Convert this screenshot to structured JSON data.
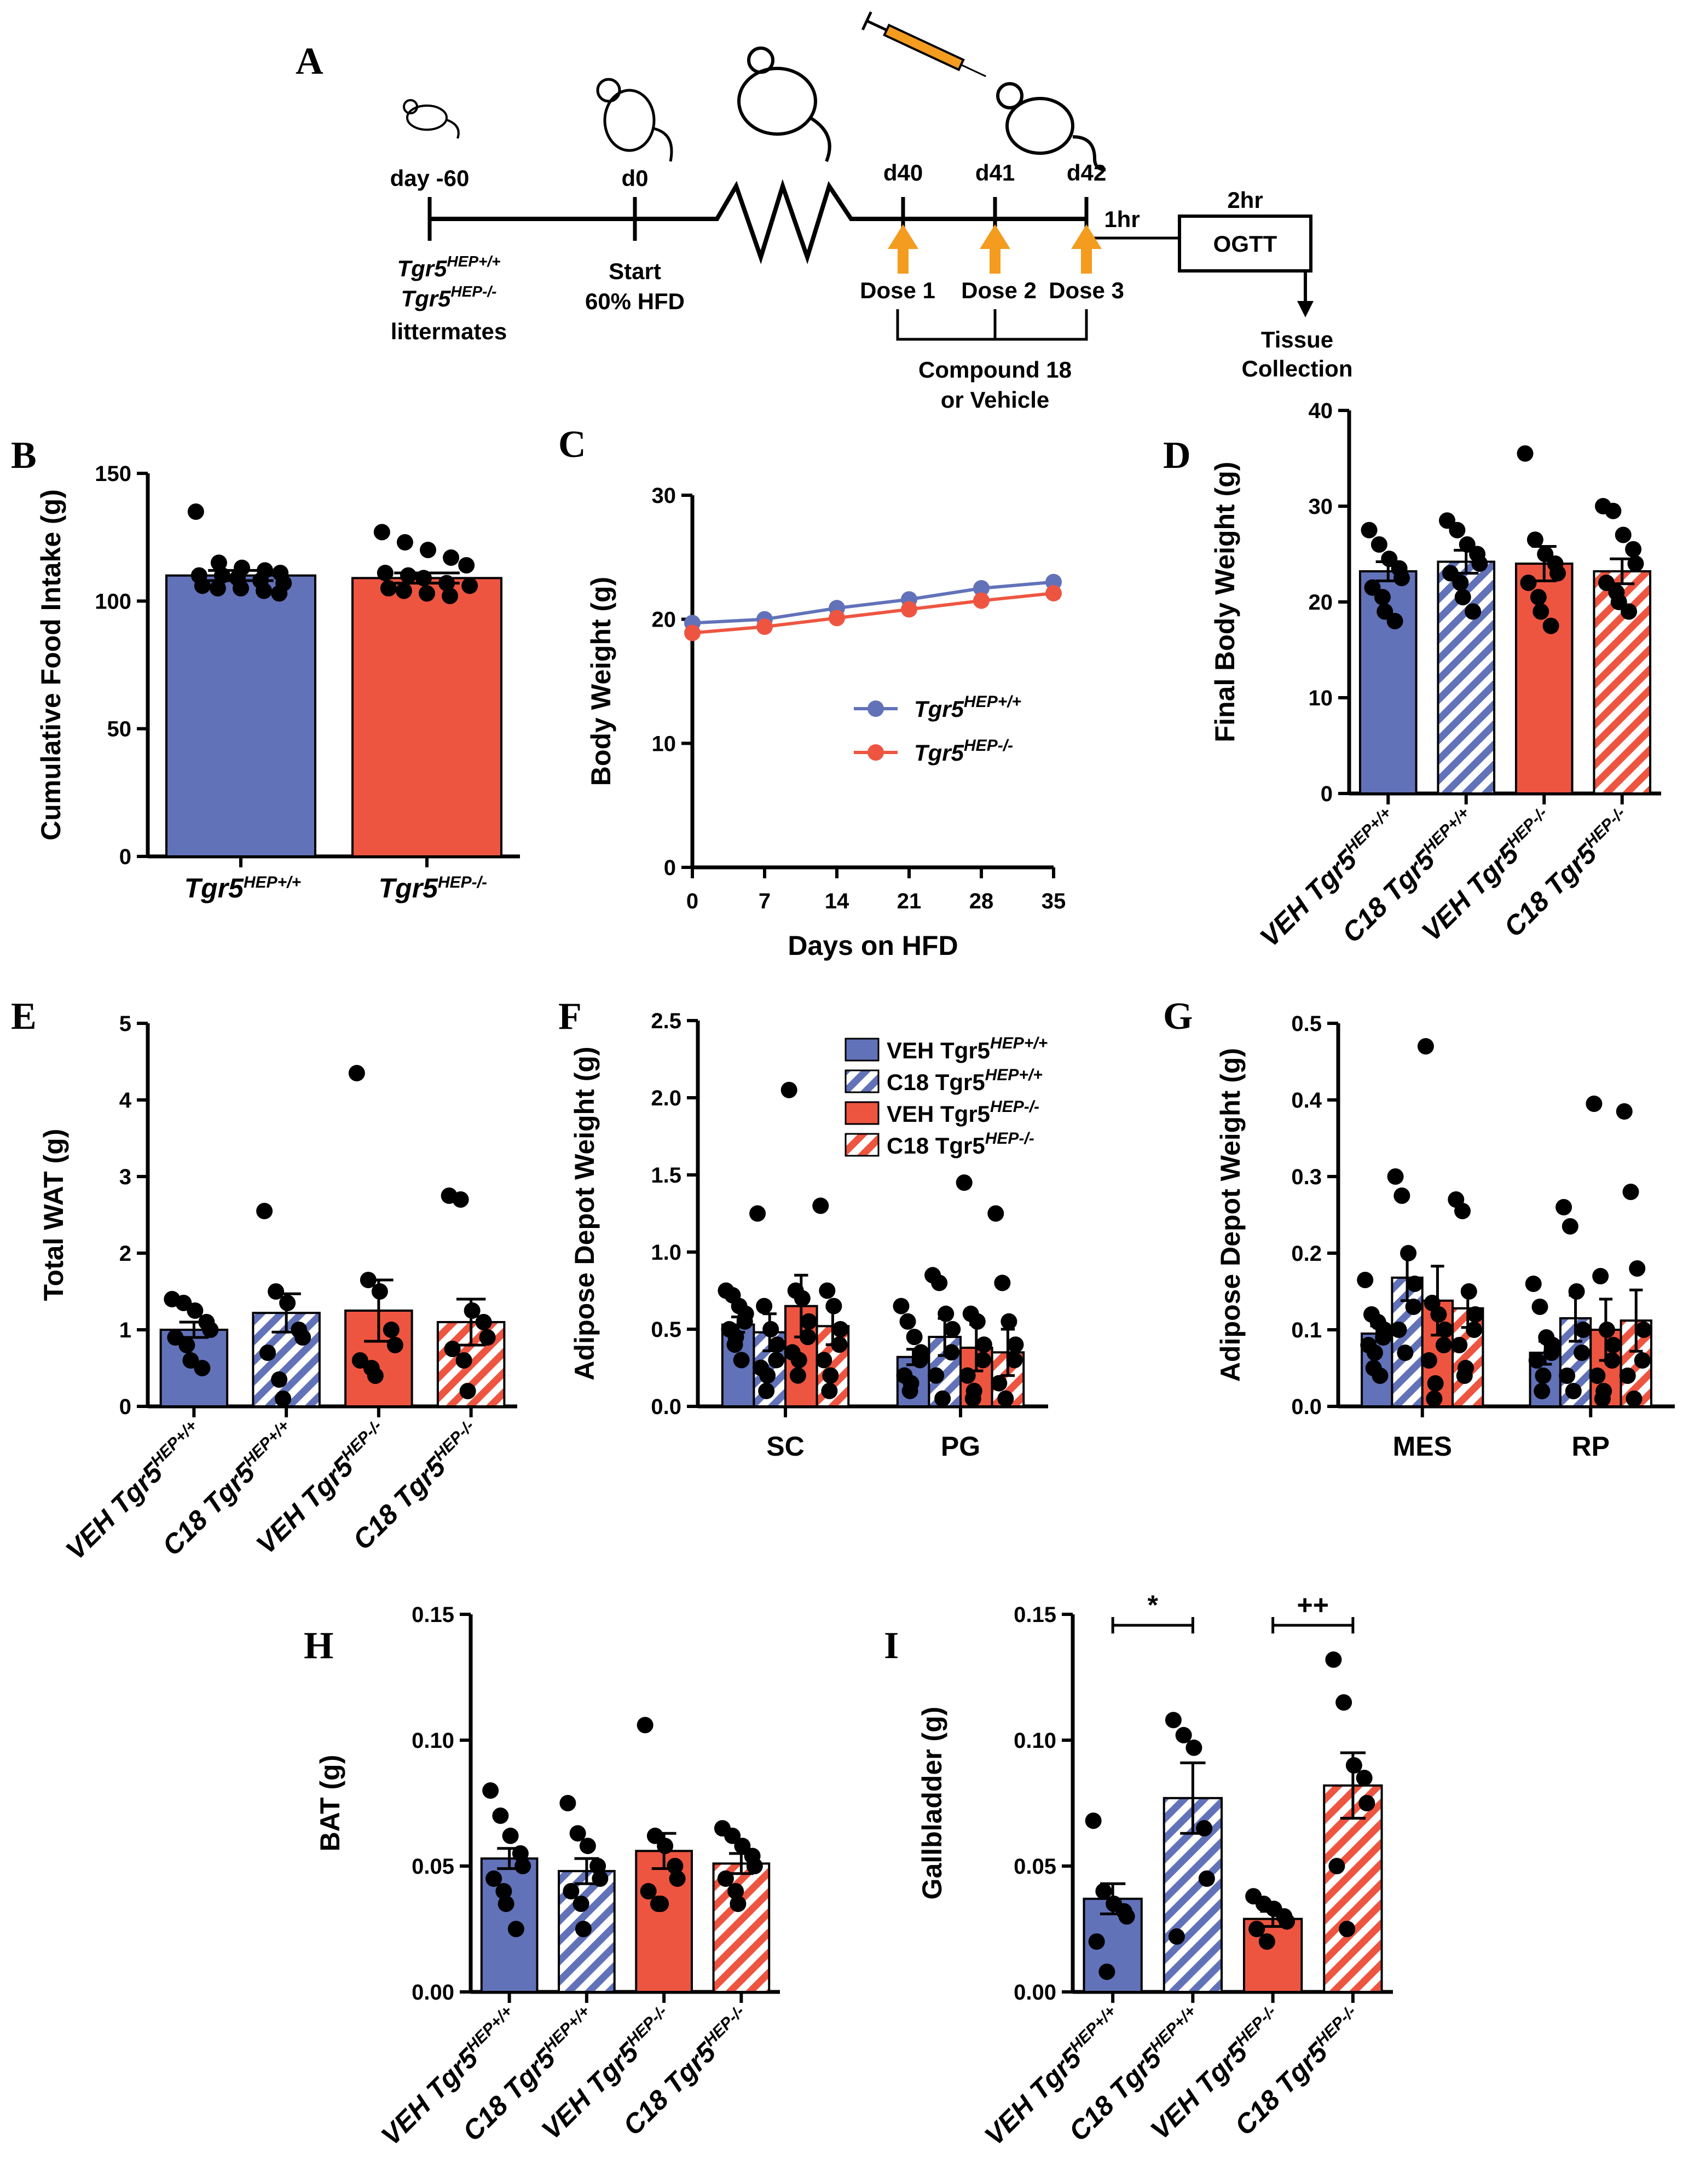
{
  "colors": {
    "blue": "#6272b9",
    "red": "#ee5541",
    "orange": "#f39c1f",
    "black": "#000000"
  },
  "schematic": {
    "letter": "A",
    "day_minus60": "day -60",
    "d0": "d0",
    "d40": "d40",
    "d41": "d41",
    "d42": "d42",
    "two_hr": "2hr",
    "one_hr": "1hr",
    "ogtt": "OGTT",
    "genotype1_base": "Tgr5",
    "genotype1_sup": "HEP+/+",
    "genotype2_base": "Tgr5",
    "genotype2_sup": "HEP-/-",
    "littermates": "littermates",
    "start": "Start",
    "hfd": "60% HFD",
    "dose1": "Dose 1",
    "dose2": "Dose 2",
    "dose3": "Dose 3",
    "compound_line1": "Compound 18",
    "compound_line2": "or Vehicle",
    "tissue_line1": "Tissue",
    "tissue_line2": "Collection",
    "mouse_icons": [
      "mouse-icon",
      "mouse-icon",
      "mouse-icon",
      "mouse-icon"
    ],
    "syringe_icon": "syringe-icon"
  },
  "chart_data": [
    {
      "id": "B",
      "letter": "B",
      "type": "bar",
      "ylabel": "Cumulative Food Intake (g)",
      "ylim": [
        0,
        150
      ],
      "yticks": [
        0,
        50,
        100,
        150
      ],
      "categories": [
        {
          "base": "Tgr5",
          "sup": "HEP+/+"
        },
        {
          "base": "Tgr5",
          "sup": "HEP-/-"
        }
      ],
      "bars": [
        {
          "value": 110,
          "sem": 2,
          "color": "blue",
          "hatch": false,
          "points": [
            135,
            115,
            113,
            112,
            111,
            110,
            110,
            109,
            108,
            107,
            106,
            105,
            105,
            104,
            103
          ]
        },
        {
          "value": 109,
          "sem": 2,
          "color": "red",
          "hatch": false,
          "points": [
            127,
            123,
            120,
            117,
            114,
            111,
            110,
            109,
            107,
            106,
            105,
            104,
            103,
            102
          ]
        }
      ]
    },
    {
      "id": "C",
      "letter": "C",
      "type": "line",
      "ylabel": "Body Weight (g)",
      "xlabel": "Days on HFD",
      "ylim": [
        0,
        30
      ],
      "yticks": [
        0,
        10,
        20,
        30
      ],
      "xlim": [
        0,
        35
      ],
      "xticks": [
        0,
        7,
        14,
        21,
        28,
        35
      ],
      "series": [
        {
          "base": "Tgr5",
          "sup": "HEP+/+",
          "color": "blue",
          "x": [
            0,
            7,
            14,
            21,
            28,
            35
          ],
          "y": [
            19.7,
            20.0,
            20.9,
            21.6,
            22.5,
            23.0
          ],
          "sem": [
            0.5,
            0.5,
            0.5,
            0.5,
            0.5,
            0.5
          ]
        },
        {
          "base": "Tgr5",
          "sup": "HEP-/-",
          "color": "red",
          "x": [
            0,
            7,
            14,
            21,
            28,
            35
          ],
          "y": [
            18.9,
            19.4,
            20.1,
            20.8,
            21.5,
            22.1
          ],
          "sem": [
            0.6,
            0.6,
            0.6,
            0.6,
            0.6,
            0.6
          ]
        }
      ]
    },
    {
      "id": "D",
      "letter": "D",
      "type": "bar",
      "ylabel": "Final Body Weight (g)",
      "ylim": [
        0,
        40
      ],
      "yticks": [
        0,
        10,
        20,
        30,
        40
      ],
      "categories": [
        {
          "base": "VEH Tgr5",
          "sup": "HEP+/+"
        },
        {
          "base": "C18 Tgr5",
          "sup": "HEP+/+"
        },
        {
          "base": "VEH Tgr5",
          "sup": "HEP-/-"
        },
        {
          "base": "C18 Tgr5",
          "sup": "HEP-/-"
        }
      ],
      "bars": [
        {
          "value": 23.2,
          "sem": 1.0,
          "color": "blue",
          "hatch": false,
          "points": [
            27.5,
            26.0,
            24.5,
            23.5,
            22.5,
            21.5,
            20.5,
            19.0,
            18.0
          ]
        },
        {
          "value": 24.2,
          "sem": 1.2,
          "color": "blue",
          "hatch": true,
          "points": [
            28.5,
            27.5,
            26.0,
            25.0,
            24.0,
            23.0,
            22.0,
            20.5,
            19.0
          ]
        },
        {
          "value": 24.0,
          "sem": 1.8,
          "color": "red",
          "hatch": false,
          "points": [
            35.5,
            26.5,
            25.0,
            24.0,
            23.0,
            22.0,
            20.5,
            19.0,
            17.5
          ]
        },
        {
          "value": 23.2,
          "sem": 1.3,
          "color": "red",
          "hatch": true,
          "points": [
            30.0,
            29.5,
            27.0,
            25.5,
            24.0,
            22.0,
            21.0,
            20.0,
            19.0
          ]
        }
      ]
    },
    {
      "id": "E",
      "letter": "E",
      "type": "bar",
      "ylabel": "Total WAT (g)",
      "ylim": [
        0,
        5
      ],
      "yticks": [
        0,
        1,
        2,
        3,
        4,
        5
      ],
      "categories": [
        {
          "base": "VEH Tgr5",
          "sup": "HEP+/+"
        },
        {
          "base": "C18 Tgr5",
          "sup": "HEP+/+"
        },
        {
          "base": "VEH Tgr5",
          "sup": "HEP-/-"
        },
        {
          "base": "C18 Tgr5",
          "sup": "HEP-/-"
        }
      ],
      "bars": [
        {
          "value": 1.0,
          "sem": 0.1,
          "color": "blue",
          "hatch": false,
          "points": [
            1.4,
            1.35,
            1.25,
            1.1,
            1.0,
            0.9,
            0.8,
            0.6,
            0.5
          ]
        },
        {
          "value": 1.22,
          "sem": 0.25,
          "color": "blue",
          "hatch": true,
          "points": [
            2.55,
            1.5,
            1.35,
            1.0,
            0.9,
            0.7,
            0.35,
            0.1
          ]
        },
        {
          "value": 1.25,
          "sem": 0.4,
          "color": "red",
          "hatch": false,
          "points": [
            4.35,
            1.65,
            1.5,
            1.0,
            0.8,
            0.6,
            0.5,
            0.4
          ]
        },
        {
          "value": 1.1,
          "sem": 0.3,
          "color": "red",
          "hatch": true,
          "points": [
            2.75,
            2.7,
            1.25,
            1.1,
            0.9,
            0.75,
            0.6,
            0.2
          ]
        }
      ]
    },
    {
      "id": "F",
      "letter": "F",
      "type": "bar",
      "ylabel": "Adipose Depot Weight (g)",
      "ylim": [
        0,
        2.5
      ],
      "yticks": [
        0,
        0.5,
        1.0,
        1.5,
        2.0,
        2.5
      ],
      "ytick_labels": [
        "0.0",
        "0.5",
        "1.0",
        "1.5",
        "2.0",
        "2.5"
      ],
      "groups": [
        "SC",
        "PG"
      ],
      "legend": [
        {
          "base": "VEH Tgr5",
          "sup": "HEP+/+",
          "color": "blue",
          "hatch": false
        },
        {
          "base": "C18 Tgr5",
          "sup": "HEP+/+",
          "color": "blue",
          "hatch": true
        },
        {
          "base": "VEH Tgr5",
          "sup": "HEP-/-",
          "color": "red",
          "hatch": false
        },
        {
          "base": "C18 Tgr5",
          "sup": "HEP-/-",
          "color": "red",
          "hatch": true
        }
      ],
      "bars": [
        [
          {
            "value": 0.53,
            "sem": 0.05,
            "color": "blue",
            "hatch": false,
            "points": [
              0.75,
              0.72,
              0.65,
              0.6,
              0.55,
              0.5,
              0.45,
              0.4,
              0.3
            ]
          },
          {
            "value": 0.48,
            "sem": 0.12,
            "color": "blue",
            "hatch": true,
            "points": [
              1.25,
              0.65,
              0.5,
              0.4,
              0.3,
              0.25,
              0.2,
              0.1
            ]
          },
          {
            "value": 0.65,
            "sem": 0.2,
            "color": "red",
            "hatch": false,
            "points": [
              2.05,
              0.75,
              0.7,
              0.55,
              0.45,
              0.35,
              0.3,
              0.2
            ]
          },
          {
            "value": 0.52,
            "sem": 0.12,
            "color": "red",
            "hatch": true,
            "points": [
              1.3,
              0.75,
              0.65,
              0.5,
              0.4,
              0.3,
              0.2,
              0.1
            ]
          }
        ],
        [
          {
            "value": 0.32,
            "sem": 0.05,
            "color": "blue",
            "hatch": false,
            "points": [
              0.65,
              0.55,
              0.45,
              0.35,
              0.3,
              0.2,
              0.15,
              0.1
            ]
          },
          {
            "value": 0.45,
            "sem": 0.12,
            "color": "blue",
            "hatch": true,
            "points": [
              0.85,
              0.8,
              0.6,
              0.5,
              0.35,
              0.2,
              0.05
            ]
          },
          {
            "value": 0.38,
            "sem": 0.15,
            "color": "red",
            "hatch": false,
            "points": [
              1.45,
              0.6,
              0.55,
              0.4,
              0.3,
              0.2,
              0.1,
              0.05
            ]
          },
          {
            "value": 0.35,
            "sem": 0.15,
            "color": "red",
            "hatch": true,
            "points": [
              1.25,
              0.8,
              0.55,
              0.4,
              0.3,
              0.15,
              0.05
            ]
          }
        ]
      ]
    },
    {
      "id": "G",
      "letter": "G",
      "type": "bar",
      "ylabel": "Adipose Depot Weight (g)",
      "ylim": [
        0,
        0.5
      ],
      "yticks": [
        0,
        0.1,
        0.2,
        0.3,
        0.4,
        0.5
      ],
      "ytick_labels": [
        "0.0",
        "0.1",
        "0.2",
        "0.3",
        "0.4",
        "0.5"
      ],
      "groups": [
        "MES",
        "RP"
      ],
      "bars": [
        [
          {
            "value": 0.095,
            "sem": 0.01,
            "color": "blue",
            "hatch": false,
            "points": [
              0.165,
              0.12,
              0.11,
              0.1,
              0.09,
              0.08,
              0.07,
              0.05,
              0.04
            ]
          },
          {
            "value": 0.168,
            "sem": 0.03,
            "color": "blue",
            "hatch": true,
            "points": [
              0.3,
              0.275,
              0.2,
              0.16,
              0.13,
              0.1,
              0.07
            ]
          },
          {
            "value": 0.138,
            "sem": 0.045,
            "color": "red",
            "hatch": false,
            "points": [
              0.47,
              0.135,
              0.12,
              0.1,
              0.08,
              0.06,
              0.03,
              0.01
            ]
          },
          {
            "value": 0.128,
            "sem": 0.025,
            "color": "red",
            "hatch": true,
            "points": [
              0.27,
              0.255,
              0.15,
              0.12,
              0.1,
              0.08,
              0.05,
              0.04
            ]
          }
        ],
        [
          {
            "value": 0.07,
            "sem": 0.015,
            "color": "blue",
            "hatch": false,
            "points": [
              0.16,
              0.13,
              0.09,
              0.08,
              0.07,
              0.06,
              0.04,
              0.02
            ]
          },
          {
            "value": 0.115,
            "sem": 0.03,
            "color": "blue",
            "hatch": true,
            "points": [
              0.26,
              0.235,
              0.15,
              0.1,
              0.07,
              0.04,
              0.02
            ]
          },
          {
            "value": 0.1,
            "sem": 0.04,
            "color": "red",
            "hatch": false,
            "points": [
              0.395,
              0.17,
              0.1,
              0.08,
              0.06,
              0.04,
              0.02,
              0.01
            ]
          },
          {
            "value": 0.112,
            "sem": 0.04,
            "color": "red",
            "hatch": true,
            "points": [
              0.385,
              0.28,
              0.18,
              0.1,
              0.06,
              0.04,
              0.01
            ]
          }
        ]
      ]
    },
    {
      "id": "H",
      "letter": "H",
      "type": "bar",
      "ylabel": "BAT (g)",
      "ylim": [
        0,
        0.15
      ],
      "yticks": [
        0,
        0.05,
        0.1,
        0.15
      ],
      "ytick_labels": [
        "0.00",
        "0.05",
        "0.10",
        "0.15"
      ],
      "categories": [
        {
          "base": "VEH Tgr5",
          "sup": "HEP+/+"
        },
        {
          "base": "C18 Tgr5",
          "sup": "HEP+/+"
        },
        {
          "base": "VEH Tgr5",
          "sup": "HEP-/-"
        },
        {
          "base": "C18 Tgr5",
          "sup": "HEP-/-"
        }
      ],
      "bars": [
        {
          "value": 0.053,
          "sem": 0.004,
          "color": "blue",
          "hatch": false,
          "points": [
            0.08,
            0.07,
            0.062,
            0.055,
            0.05,
            0.045,
            0.04,
            0.035,
            0.025
          ]
        },
        {
          "value": 0.048,
          "sem": 0.005,
          "color": "blue",
          "hatch": true,
          "points": [
            0.075,
            0.063,
            0.058,
            0.05,
            0.045,
            0.04,
            0.035,
            0.025
          ]
        },
        {
          "value": 0.056,
          "sem": 0.007,
          "color": "red",
          "hatch": false,
          "points": [
            0.106,
            0.062,
            0.058,
            0.05,
            0.045,
            0.04,
            0.035,
            0.035
          ]
        },
        {
          "value": 0.051,
          "sem": 0.004,
          "color": "red",
          "hatch": true,
          "points": [
            0.065,
            0.062,
            0.058,
            0.054,
            0.05,
            0.045,
            0.04,
            0.035
          ]
        }
      ]
    },
    {
      "id": "I",
      "letter": "I",
      "type": "bar",
      "ylabel": "Gallbladder (g)",
      "ylim": [
        0,
        0.15
      ],
      "yticks": [
        0,
        0.05,
        0.1,
        0.15
      ],
      "ytick_labels": [
        "0.00",
        "0.05",
        "0.10",
        "0.15"
      ],
      "categories": [
        {
          "base": "VEH Tgr5",
          "sup": "HEP+/+"
        },
        {
          "base": "C18 Tgr5",
          "sup": "HEP+/+"
        },
        {
          "base": "VEH Tgr5",
          "sup": "HEP-/-"
        },
        {
          "base": "C18 Tgr5",
          "sup": "HEP-/-"
        }
      ],
      "bars": [
        {
          "value": 0.037,
          "sem": 0.006,
          "color": "blue",
          "hatch": false,
          "points": [
            0.068,
            0.04,
            0.035,
            0.032,
            0.03,
            0.02,
            0.008
          ]
        },
        {
          "value": 0.077,
          "sem": 0.014,
          "color": "blue",
          "hatch": true,
          "points": [
            0.108,
            0.102,
            0.097,
            0.065,
            0.045,
            0.022
          ]
        },
        {
          "value": 0.029,
          "sem": 0.003,
          "color": "red",
          "hatch": false,
          "points": [
            0.038,
            0.035,
            0.033,
            0.03,
            0.028,
            0.025,
            0.02
          ]
        },
        {
          "value": 0.082,
          "sem": 0.013,
          "color": "red",
          "hatch": true,
          "points": [
            0.132,
            0.115,
            0.09,
            0.085,
            0.075,
            0.05,
            0.025
          ]
        }
      ],
      "significance": [
        {
          "from": 0,
          "to": 1,
          "label": "*"
        },
        {
          "from": 2,
          "to": 3,
          "label": "++"
        }
      ]
    }
  ]
}
